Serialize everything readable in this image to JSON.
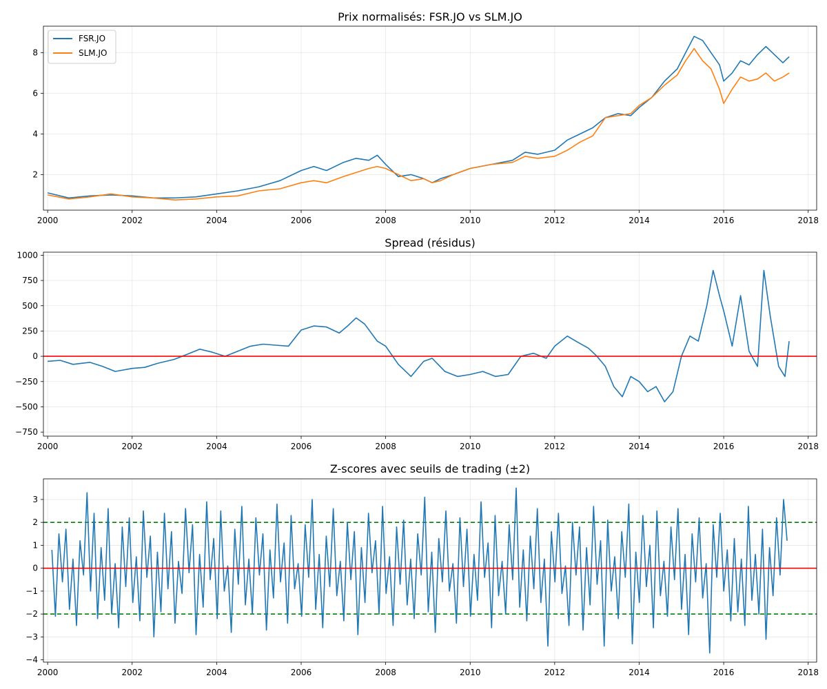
{
  "figure": {
    "background": "#ffffff"
  },
  "chart_data": [
    {
      "type": "line",
      "title": "Prix normalisés: FSR.JO vs SLM.JO",
      "xlabel": "",
      "ylabel": "",
      "xlim": [
        1999.9,
        2018.2
      ],
      "ylim": [
        0.25,
        9.3
      ],
      "xticks": [
        2000,
        2002,
        2004,
        2006,
        2008,
        2010,
        2012,
        2014,
        2016,
        2018
      ],
      "yticks": [
        2,
        4,
        6,
        8
      ],
      "grid": true,
      "legend": "top-left",
      "series": [
        {
          "name": "FSR.JO",
          "color": "#1f77b4",
          "x": [
            2000,
            2000.5,
            2001,
            2001.5,
            2002,
            2002.5,
            2003,
            2003.5,
            2004,
            2004.5,
            2005,
            2005.5,
            2006,
            2006.3,
            2006.6,
            2007,
            2007.3,
            2007.6,
            2007.8,
            2008,
            2008.3,
            2008.6,
            2008.9,
            2009.1,
            2009.3,
            2009.6,
            2010,
            2010.5,
            2011,
            2011.3,
            2011.6,
            2012,
            2012.3,
            2012.6,
            2012.9,
            2013.2,
            2013.5,
            2013.8,
            2014,
            2014.3,
            2014.6,
            2014.9,
            2015.1,
            2015.3,
            2015.5,
            2015.7,
            2015.9,
            2016,
            2016.2,
            2016.4,
            2016.6,
            2016.8,
            2017,
            2017.2,
            2017.4,
            2017.55
          ],
          "y": [
            1.1,
            0.85,
            0.95,
            1.0,
            0.95,
            0.85,
            0.85,
            0.9,
            1.05,
            1.2,
            1.4,
            1.7,
            2.2,
            2.4,
            2.2,
            2.6,
            2.8,
            2.7,
            2.95,
            2.5,
            1.9,
            2.0,
            1.8,
            1.6,
            1.8,
            2.0,
            2.3,
            2.5,
            2.7,
            3.1,
            3.0,
            3.2,
            3.7,
            4.0,
            4.3,
            4.8,
            5.0,
            4.9,
            5.3,
            5.8,
            6.6,
            7.2,
            8.0,
            8.8,
            8.6,
            8.0,
            7.4,
            6.6,
            7.0,
            7.6,
            7.4,
            7.9,
            8.3,
            7.9,
            7.5,
            7.8
          ]
        },
        {
          "name": "SLM.JO",
          "color": "#ff7f0e",
          "x": [
            2000,
            2000.5,
            2001,
            2001.5,
            2002,
            2002.5,
            2003,
            2003.5,
            2004,
            2004.5,
            2005,
            2005.5,
            2006,
            2006.3,
            2006.6,
            2007,
            2007.3,
            2007.6,
            2007.8,
            2008,
            2008.3,
            2008.6,
            2008.9,
            2009.1,
            2009.3,
            2009.6,
            2010,
            2010.5,
            2011,
            2011.3,
            2011.6,
            2012,
            2012.3,
            2012.6,
            2012.9,
            2013.2,
            2013.5,
            2013.8,
            2014,
            2014.3,
            2014.6,
            2014.9,
            2015.1,
            2015.3,
            2015.5,
            2015.7,
            2015.9,
            2016,
            2016.2,
            2016.4,
            2016.6,
            2016.8,
            2017,
            2017.2,
            2017.4,
            2017.55
          ],
          "y": [
            1.0,
            0.8,
            0.9,
            1.05,
            0.9,
            0.85,
            0.75,
            0.8,
            0.9,
            0.95,
            1.2,
            1.3,
            1.6,
            1.7,
            1.6,
            1.9,
            2.1,
            2.3,
            2.4,
            2.3,
            2.0,
            1.7,
            1.8,
            1.6,
            1.7,
            2.0,
            2.3,
            2.5,
            2.6,
            2.9,
            2.8,
            2.9,
            3.2,
            3.6,
            3.9,
            4.8,
            4.9,
            5.0,
            5.4,
            5.8,
            6.4,
            6.9,
            7.6,
            8.2,
            7.6,
            7.2,
            6.2,
            5.5,
            6.2,
            6.8,
            6.6,
            6.7,
            7.0,
            6.6,
            6.8,
            7.0
          ]
        }
      ]
    },
    {
      "type": "line",
      "title": "Spread (résidus)",
      "xlabel": "",
      "ylabel": "",
      "xlim": [
        1999.9,
        2018.2
      ],
      "ylim": [
        -790,
        1030
      ],
      "xticks": [
        2000,
        2002,
        2004,
        2006,
        2008,
        2010,
        2012,
        2014,
        2016,
        2018
      ],
      "yticks": [
        -750,
        -500,
        -250,
        0,
        250,
        500,
        750,
        1000
      ],
      "ytick_labels": [
        "−750",
        "−500",
        "−250",
        "0",
        "250",
        "500",
        "750",
        "1000"
      ],
      "grid": true,
      "hlines": [
        {
          "y": 0,
          "color": "#ff0000",
          "style": "solid"
        }
      ],
      "series": [
        {
          "color": "#1f77b4",
          "x": [
            2000,
            2000.3,
            2000.6,
            2001,
            2001.3,
            2001.6,
            2002,
            2002.3,
            2002.6,
            2003,
            2003.3,
            2003.6,
            2003.9,
            2004.2,
            2004.5,
            2004.8,
            2005.1,
            2005.4,
            2005.7,
            2006,
            2006.3,
            2006.6,
            2006.9,
            2007.1,
            2007.3,
            2007.5,
            2007.8,
            2008,
            2008.3,
            2008.6,
            2008.9,
            2009.1,
            2009.4,
            2009.7,
            2010,
            2010.3,
            2010.6,
            2010.9,
            2011.2,
            2011.5,
            2011.8,
            2012,
            2012.3,
            2012.5,
            2012.8,
            2013,
            2013.2,
            2013.4,
            2013.6,
            2013.8,
            2014,
            2014.2,
            2014.4,
            2014.6,
            2014.8,
            2015,
            2015.2,
            2015.4,
            2015.6,
            2015.75,
            2015.9,
            2016,
            2016.2,
            2016.4,
            2016.6,
            2016.8,
            2016.95,
            2017.1,
            2017.3,
            2017.45,
            2017.55
          ],
          "y": [
            -50,
            -40,
            -80,
            -60,
            -100,
            -150,
            -120,
            -110,
            -70,
            -30,
            20,
            70,
            40,
            0,
            50,
            100,
            120,
            110,
            100,
            260,
            300,
            290,
            230,
            300,
            380,
            320,
            150,
            100,
            -80,
            -200,
            -50,
            -20,
            -150,
            -200,
            -180,
            -150,
            -200,
            -180,
            0,
            30,
            -20,
            100,
            200,
            150,
            80,
            0,
            -100,
            -300,
            -400,
            -200,
            -250,
            -350,
            -300,
            -450,
            -350,
            0,
            200,
            150,
            500,
            850,
            600,
            450,
            100,
            600,
            50,
            -100,
            850,
            400,
            -100,
            -200,
            150
          ]
        }
      ]
    },
    {
      "type": "line",
      "title": "Z-scores avec seuils de trading (±2)",
      "xlabel": "",
      "ylabel": "",
      "xlim": [
        1999.9,
        2018.2
      ],
      "ylim": [
        -4.1,
        3.9
      ],
      "xticks": [
        2000,
        2002,
        2004,
        2006,
        2008,
        2010,
        2012,
        2014,
        2016,
        2018
      ],
      "yticks": [
        -4,
        -3,
        -2,
        -1,
        0,
        1,
        2,
        3
      ],
      "ytick_labels": [
        "−4",
        "−3",
        "−2",
        "−1",
        "0",
        "1",
        "2",
        "3"
      ],
      "grid": true,
      "hlines": [
        {
          "y": 2,
          "color": "#008000",
          "style": "dashed"
        },
        {
          "y": -2,
          "color": "#008000",
          "style": "dashed"
        },
        {
          "y": 0,
          "color": "#ff0000",
          "style": "solid"
        }
      ],
      "series": [
        {
          "color": "#1f77b4",
          "x_start": 2000.1,
          "x_end": 2017.5,
          "y": [
            0.8,
            -2.1,
            1.5,
            -0.6,
            1.7,
            -1.8,
            0.4,
            -2.5,
            1.2,
            -0.3,
            3.3,
            -1.0,
            2.4,
            -2.2,
            0.9,
            -1.4,
            2.6,
            -2.0,
            0.2,
            -2.6,
            1.8,
            -0.8,
            2.2,
            -1.5,
            0.5,
            -2.3,
            2.5,
            -0.4,
            1.4,
            -3.0,
            0.7,
            -1.9,
            2.4,
            -0.9,
            1.6,
            -2.4,
            0.3,
            -1.1,
            2.6,
            -0.2,
            1.9,
            -2.9,
            0.6,
            -1.7,
            2.9,
            -0.5,
            1.3,
            -2.2,
            2.5,
            -1.0,
            0.1,
            -2.8,
            1.7,
            -0.7,
            2.7,
            -1.6,
            0.4,
            -2.0,
            2.2,
            -0.3,
            1.5,
            -2.7,
            0.8,
            -1.3,
            2.8,
            -0.6,
            1.1,
            -2.4,
            2.3,
            -0.9,
            0.2,
            -2.1,
            1.9,
            -0.4,
            3.0,
            -1.8,
            0.6,
            -2.6,
            1.4,
            -0.8,
            2.6,
            -1.2,
            0.3,
            -2.3,
            2.0,
            -0.5,
            1.6,
            -2.9,
            0.9,
            -1.5,
            2.4,
            -0.2,
            1.2,
            -2.0,
            2.7,
            -1.1,
            0.5,
            -2.5,
            1.8,
            -0.7,
            2.1,
            -1.6,
            0.4,
            -2.2,
            1.5,
            -0.3,
            3.1,
            -1.9,
            0.7,
            -2.8,
            1.3,
            -0.6,
            2.5,
            -1.0,
            0.2,
            -2.4,
            2.2,
            -0.8,
            1.7,
            -2.1,
            0.6,
            -1.4,
            2.9,
            -0.4,
            1.1,
            -2.6,
            2.3,
            -1.2,
            0.3,
            -2.0,
            1.9,
            -0.5,
            3.5,
            -1.7,
            0.8,
            -2.3,
            1.4,
            -0.9,
            2.6,
            -1.5,
            0.4,
            -3.4,
            1.6,
            -0.6,
            2.4,
            -1.1,
            0.1,
            -2.5,
            2.0,
            -0.3,
            1.8,
            -2.7,
            0.9,
            -1.6,
            2.7,
            -0.7,
            1.2,
            -3.4,
            2.1,
            -1.0,
            0.5,
            -2.2,
            1.6,
            -0.4,
            2.8,
            -3.3,
            0.7,
            -1.5,
            2.3,
            -0.8,
            1.0,
            -2.6,
            2.5,
            -1.2,
            0.3,
            -2.1,
            1.8,
            -0.5,
            2.6,
            -1.8,
            0.6,
            -2.9,
            1.5,
            -0.6,
            2.2,
            -1.3,
            0.2,
            -3.7,
            1.9,
            -0.4,
            2.4,
            -1.0,
            0.8,
            -2.3,
            1.3,
            -1.9,
            0.4,
            -2.5,
            2.7,
            -1.4,
            0.6,
            -2.0,
            1.7,
            -3.1,
            0.9,
            -1.2,
            2.2,
            -0.3,
            3.0,
            1.2
          ]
        }
      ]
    }
  ]
}
